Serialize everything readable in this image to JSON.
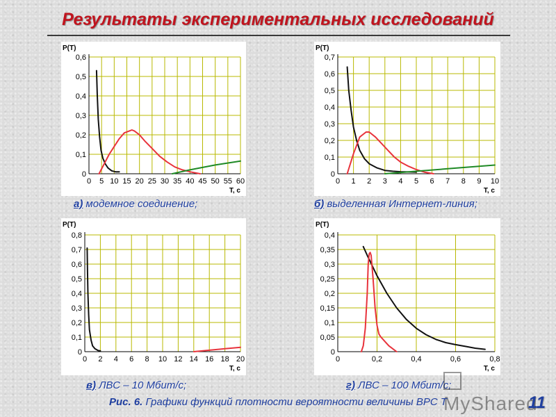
{
  "title": "Результаты экспериментальных исследований",
  "figure_caption_label": "Рис. 6.",
  "figure_caption_text": " Графики функций плотности вероятности величины ВРС Т",
  "page_number": "11",
  "watermark_text": "MyShared",
  "panels": [
    {
      "letter": "а)",
      "caption": " модемное соединение;"
    },
    {
      "letter": "б)",
      "caption": " выделенная Интернет-линия;"
    },
    {
      "letter": "в)",
      "caption": " ЛВС – 10 Мбит/с;"
    },
    {
      "letter": "г)",
      "caption": " ЛВС – 100 Мбит/с;"
    }
  ],
  "colors": {
    "black_curve": "#111111",
    "red_curve": "#e8333c",
    "green_curve": "#1f8a25",
    "grid": "#b8b800"
  },
  "chart_data": [
    {
      "type": "line",
      "ylabel": "P(T)",
      "xlabel": "T, c",
      "xlim": [
        0,
        60
      ],
      "ylim": [
        0,
        0.6
      ],
      "xticks": [
        0,
        5,
        10,
        15,
        20,
        25,
        30,
        35,
        40,
        45,
        50,
        55,
        60
      ],
      "yticks": [
        0,
        0.1,
        0.2,
        0.3,
        0.4,
        0.5,
        0.6
      ],
      "xtick_labels": [
        "0",
        "5",
        "10",
        "15",
        "20",
        "25",
        "30",
        "35",
        "40",
        "45",
        "50",
        "55",
        "60"
      ],
      "ytick_labels": [
        "0",
        "0,1",
        "0,2",
        "0,3",
        "0,4",
        "0,5",
        "0,6"
      ],
      "grid": true,
      "series": [
        {
          "color": "black",
          "x": [
            3,
            3.3,
            3.7,
            4.2,
            4.8,
            5.5,
            6.5,
            7.5,
            9,
            10.5,
            12
          ],
          "y": [
            0.53,
            0.4,
            0.28,
            0.19,
            0.12,
            0.08,
            0.05,
            0.03,
            0.015,
            0.01,
            0.01
          ]
        },
        {
          "color": "red",
          "x": [
            4,
            6,
            8,
            10,
            12,
            14,
            16,
            17,
            18,
            20,
            22,
            25,
            28,
            31,
            34,
            37,
            40,
            44
          ],
          "y": [
            0,
            0.05,
            0.1,
            0.14,
            0.18,
            0.21,
            0.22,
            0.225,
            0.22,
            0.2,
            0.17,
            0.13,
            0.09,
            0.06,
            0.035,
            0.02,
            0.01,
            0
          ]
        },
        {
          "color": "green",
          "x": [
            33,
            40,
            50,
            60
          ],
          "y": [
            0,
            0.02,
            0.045,
            0.065
          ]
        }
      ]
    },
    {
      "type": "line",
      "ylabel": "P(T)",
      "xlabel": "T, c",
      "xlim": [
        0,
        10
      ],
      "ylim": [
        0,
        0.7
      ],
      "xticks": [
        0,
        1,
        2,
        3,
        4,
        5,
        6,
        7,
        8,
        9,
        10
      ],
      "yticks": [
        0,
        0.1,
        0.2,
        0.3,
        0.4,
        0.5,
        0.6,
        0.7
      ],
      "xtick_labels": [
        "0",
        "1",
        "2",
        "3",
        "4",
        "5",
        "6",
        "7",
        "8",
        "9",
        "10"
      ],
      "ytick_labels": [
        "0",
        "0,1",
        "0,2",
        "0,3",
        "0,4",
        "0,5",
        "0,6",
        "0,7"
      ],
      "grid": true,
      "series": [
        {
          "color": "black",
          "x": [
            0.6,
            0.7,
            0.85,
            1.0,
            1.2,
            1.4,
            1.7,
            2.0,
            2.5,
            3,
            3.5,
            4,
            5
          ],
          "y": [
            0.64,
            0.5,
            0.38,
            0.28,
            0.2,
            0.14,
            0.09,
            0.06,
            0.035,
            0.02,
            0.015,
            0.012,
            0.01
          ]
        },
        {
          "color": "red",
          "x": [
            0.6,
            1.0,
            1.4,
            1.8,
            2.0,
            2.4,
            2.8,
            3.2,
            3.6,
            4.0,
            4.5,
            5.0,
            5.5,
            6.1
          ],
          "y": [
            0,
            0.12,
            0.22,
            0.25,
            0.25,
            0.22,
            0.18,
            0.14,
            0.1,
            0.07,
            0.045,
            0.025,
            0.01,
            0
          ]
        },
        {
          "color": "green",
          "x": [
            3,
            5,
            7,
            9,
            10
          ],
          "y": [
            0,
            0.015,
            0.03,
            0.045,
            0.052
          ]
        }
      ]
    },
    {
      "type": "line",
      "ylabel": "P(T)",
      "xlabel": "T, c",
      "xlim": [
        0,
        20
      ],
      "ylim": [
        0,
        0.8
      ],
      "xticks": [
        0,
        2,
        4,
        6,
        8,
        10,
        12,
        14,
        16,
        18,
        20
      ],
      "yticks": [
        0,
        0.1,
        0.2,
        0.3,
        0.4,
        0.5,
        0.6,
        0.7,
        0.8
      ],
      "xtick_labels": [
        "0",
        "2",
        "4",
        "6",
        "8",
        "10",
        "12",
        "14",
        "16",
        "18",
        "20"
      ],
      "ytick_labels": [
        "0",
        "0,1",
        "0,2",
        "0,3",
        "0,4",
        "0,5",
        "0,6",
        "0,7",
        "0,8"
      ],
      "grid": true,
      "series": [
        {
          "color": "black",
          "x": [
            0.3,
            0.35,
            0.4,
            0.5,
            0.6,
            0.8,
            1.0,
            1.3,
            1.7,
            2.0
          ],
          "y": [
            0.71,
            0.55,
            0.4,
            0.25,
            0.15,
            0.08,
            0.04,
            0.02,
            0.008,
            0.005
          ]
        },
        {
          "color": "red",
          "x": [
            14,
            16,
            18,
            20
          ],
          "y": [
            0,
            0.01,
            0.02,
            0.03
          ]
        }
      ]
    },
    {
      "type": "line",
      "ylabel": "P(T)",
      "xlabel": "T, c",
      "xlim": [
        0,
        0.8
      ],
      "ylim": [
        0,
        0.4
      ],
      "xticks": [
        0,
        0.2,
        0.4,
        0.6,
        0.8
      ],
      "yticks": [
        0,
        0.05,
        0.1,
        0.15,
        0.2,
        0.25,
        0.3,
        0.35,
        0.4
      ],
      "xtick_labels": [
        "0",
        "0,2",
        "0,4",
        "0,6",
        "0,8"
      ],
      "ytick_labels": [
        "0",
        "0,05",
        "0,1",
        "0,15",
        "0,2",
        "0,25",
        "0,3",
        "0,35",
        "0,4"
      ],
      "grid": true,
      "series": [
        {
          "color": "black",
          "x": [
            0.13,
            0.15,
            0.2,
            0.25,
            0.3,
            0.35,
            0.4,
            0.45,
            0.5,
            0.55,
            0.6,
            0.65,
            0.7,
            0.75
          ],
          "y": [
            0.36,
            0.33,
            0.26,
            0.2,
            0.15,
            0.11,
            0.08,
            0.058,
            0.042,
            0.031,
            0.024,
            0.018,
            0.012,
            0.008
          ]
        },
        {
          "color": "red",
          "x": [
            0.12,
            0.13,
            0.14,
            0.15,
            0.155,
            0.16,
            0.165,
            0.17,
            0.18,
            0.19,
            0.2,
            0.21,
            0.22,
            0.24,
            0.26,
            0.28,
            0.3
          ],
          "y": [
            0,
            0.02,
            0.08,
            0.2,
            0.3,
            0.335,
            0.34,
            0.33,
            0.25,
            0.15,
            0.09,
            0.06,
            0.05,
            0.035,
            0.02,
            0.01,
            0
          ]
        }
      ]
    }
  ]
}
